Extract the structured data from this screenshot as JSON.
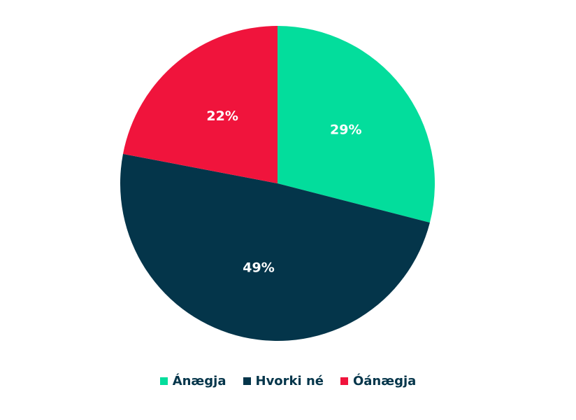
{
  "chart_data": {
    "type": "pie",
    "categories": [
      "Ánægja",
      "Hvorki né",
      "Óánægja"
    ],
    "values": [
      29,
      49,
      22
    ],
    "value_labels": [
      "29%",
      "49%",
      "22%"
    ],
    "colors": [
      "#03dd9c",
      "#04354a",
      "#f0143c"
    ],
    "legend": "bottom"
  }
}
